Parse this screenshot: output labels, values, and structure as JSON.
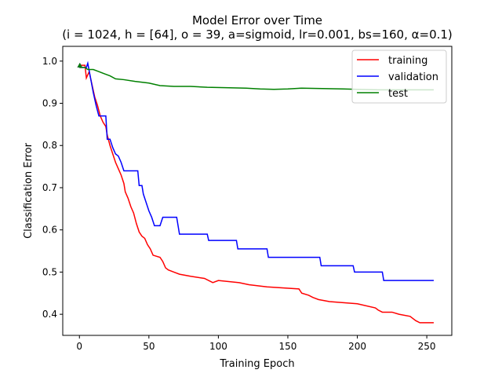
{
  "chart_data": {
    "type": "line",
    "title": "Model Error over Time",
    "subtitle": "(i = 1024, h = [64], o = 39, a=sigmoid, lr=0.001, bs=160, α=0.1)",
    "xlabel": "Training Epoch",
    "ylabel": "Classification Error",
    "xlim": [
      -12,
      268
    ],
    "ylim": [
      0.35,
      1.035
    ],
    "xticks": [
      0,
      50,
      100,
      150,
      200,
      250
    ],
    "yticks": [
      0.4,
      0.5,
      0.6,
      0.7,
      0.8,
      0.9,
      1.0
    ],
    "xtick_labels": [
      "0",
      "50",
      "100",
      "150",
      "200",
      "250"
    ],
    "ytick_labels": [
      "0.4",
      "0.5",
      "0.6",
      "0.7",
      "0.8",
      "0.9",
      "1.0"
    ],
    "grid": false,
    "legend": {
      "placement": "top-right"
    },
    "series": [
      {
        "name": "training",
        "color": "#ff0000",
        "points": [
          [
            0,
            0.99
          ],
          [
            4,
            0.99
          ],
          [
            5,
            0.96
          ],
          [
            7,
            0.975
          ],
          [
            9,
            0.945
          ],
          [
            11,
            0.915
          ],
          [
            13,
            0.895
          ],
          [
            15,
            0.87
          ],
          [
            17,
            0.855
          ],
          [
            19,
            0.845
          ],
          [
            20,
            0.825
          ],
          [
            22,
            0.8
          ],
          [
            24,
            0.78
          ],
          [
            26,
            0.76
          ],
          [
            28,
            0.745
          ],
          [
            30,
            0.73
          ],
          [
            32,
            0.71
          ],
          [
            33,
            0.69
          ],
          [
            35,
            0.675
          ],
          [
            37,
            0.655
          ],
          [
            39,
            0.64
          ],
          [
            41,
            0.615
          ],
          [
            43,
            0.595
          ],
          [
            45,
            0.585
          ],
          [
            47,
            0.58
          ],
          [
            49,
            0.565
          ],
          [
            51,
            0.555
          ],
          [
            53,
            0.54
          ],
          [
            58,
            0.535
          ],
          [
            60,
            0.525
          ],
          [
            62,
            0.51
          ],
          [
            64,
            0.505
          ],
          [
            68,
            0.5
          ],
          [
            72,
            0.495
          ],
          [
            80,
            0.49
          ],
          [
            90,
            0.485
          ],
          [
            96,
            0.475
          ],
          [
            100,
            0.48
          ],
          [
            115,
            0.475
          ],
          [
            122,
            0.47
          ],
          [
            135,
            0.465
          ],
          [
            158,
            0.46
          ],
          [
            160,
            0.45
          ],
          [
            165,
            0.445
          ],
          [
            168,
            0.44
          ],
          [
            172,
            0.435
          ],
          [
            180,
            0.43
          ],
          [
            200,
            0.425
          ],
          [
            213,
            0.415
          ],
          [
            215,
            0.41
          ],
          [
            218,
            0.405
          ],
          [
            225,
            0.405
          ],
          [
            230,
            0.4
          ],
          [
            238,
            0.395
          ],
          [
            242,
            0.385
          ],
          [
            245,
            0.38
          ],
          [
            255,
            0.38
          ]
        ]
      },
      {
        "name": "validation",
        "color": "#0000ff",
        "points": [
          [
            0,
            0.985
          ],
          [
            5,
            0.985
          ],
          [
            6,
            0.995
          ],
          [
            8,
            0.96
          ],
          [
            10,
            0.925
          ],
          [
            12,
            0.895
          ],
          [
            14,
            0.87
          ],
          [
            19,
            0.87
          ],
          [
            20,
            0.815
          ],
          [
            22,
            0.815
          ],
          [
            24,
            0.795
          ],
          [
            26,
            0.78
          ],
          [
            28,
            0.775
          ],
          [
            30,
            0.76
          ],
          [
            32,
            0.74
          ],
          [
            42,
            0.74
          ],
          [
            43,
            0.705
          ],
          [
            45,
            0.705
          ],
          [
            46,
            0.685
          ],
          [
            48,
            0.665
          ],
          [
            50,
            0.645
          ],
          [
            52,
            0.63
          ],
          [
            54,
            0.61
          ],
          [
            58,
            0.61
          ],
          [
            60,
            0.63
          ],
          [
            70,
            0.63
          ],
          [
            71,
            0.61
          ],
          [
            72,
            0.59
          ],
          [
            92,
            0.59
          ],
          [
            93,
            0.575
          ],
          [
            113,
            0.575
          ],
          [
            114,
            0.555
          ],
          [
            135,
            0.555
          ],
          [
            136,
            0.535
          ],
          [
            173,
            0.535
          ],
          [
            174,
            0.515
          ],
          [
            197,
            0.515
          ],
          [
            198,
            0.5
          ],
          [
            218,
            0.5
          ],
          [
            219,
            0.48
          ],
          [
            255,
            0.48
          ]
        ]
      },
      {
        "name": "test",
        "color": "#008000",
        "points": [
          [
            0,
            0.985
          ],
          [
            4,
            0.985
          ],
          [
            6,
            0.98
          ],
          [
            10,
            0.98
          ],
          [
            14,
            0.975
          ],
          [
            18,
            0.97
          ],
          [
            22,
            0.965
          ],
          [
            26,
            0.958
          ],
          [
            32,
            0.956
          ],
          [
            40,
            0.952
          ],
          [
            50,
            0.948
          ],
          [
            58,
            0.942
          ],
          [
            68,
            0.94
          ],
          [
            80,
            0.94
          ],
          [
            92,
            0.938
          ],
          [
            105,
            0.937
          ],
          [
            120,
            0.936
          ],
          [
            130,
            0.934
          ],
          [
            140,
            0.933
          ],
          [
            150,
            0.934
          ],
          [
            160,
            0.936
          ],
          [
            175,
            0.935
          ],
          [
            190,
            0.934
          ],
          [
            200,
            0.933
          ],
          [
            215,
            0.932
          ],
          [
            230,
            0.932
          ],
          [
            255,
            0.932
          ]
        ]
      }
    ],
    "annotations": [
      {
        "type": "marker",
        "shape": "triangle",
        "x": 0.3,
        "y": 0.99,
        "color": "#ff0000"
      },
      {
        "type": "marker",
        "shape": "triangle",
        "x": 0.3,
        "y": 0.99,
        "color": "#0000ff"
      },
      {
        "type": "marker",
        "shape": "triangle",
        "x": 0.3,
        "y": 0.99,
        "color": "#008000"
      }
    ]
  }
}
